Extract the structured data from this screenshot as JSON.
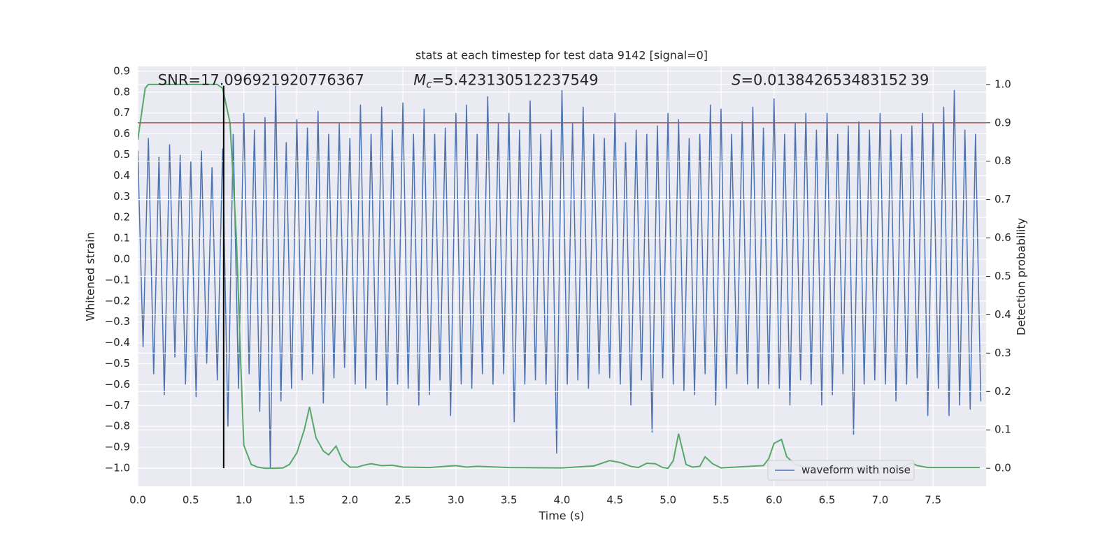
{
  "chart_data": {
    "type": "line",
    "title": "stats at each timestep for test data 9142 [signal=0]",
    "xlabel": "Time (s)",
    "ylabel": "Whitened strain",
    "y2label": "Detection probability",
    "xlim": [
      0,
      8
    ],
    "ylim": [
      -1.087,
      0.923
    ],
    "y2lim": [
      -0.047,
      1.047
    ],
    "xticks": [
      {
        "value": 0,
        "label": "0.0"
      },
      0.5,
      {
        "value": 1,
        "label": "1.0"
      },
      1.5,
      {
        "value": 2,
        "label": "2.0"
      },
      2.5,
      {
        "value": 3,
        "label": "3.0"
      },
      3.5,
      {
        "value": 4,
        "label": "4.0"
      },
      4.5,
      {
        "value": 5,
        "label": "5.0"
      },
      5.5,
      {
        "value": 6,
        "label": "6.0"
      },
      6.5,
      {
        "value": 7,
        "label": "7.0"
      },
      7.5
    ],
    "yticks": [
      0.9,
      0.8,
      0.7,
      0.6,
      0.5,
      0.4,
      0.3,
      0.2,
      0.1,
      {
        "value": 0,
        "label": "0.0"
      },
      {
        "value": -0.1,
        "label": "−0.1"
      },
      {
        "value": -0.2,
        "label": "−0.2"
      },
      {
        "value": -0.3,
        "label": "−0.3"
      },
      {
        "value": -0.4,
        "label": "−0.4"
      },
      {
        "value": -0.5,
        "label": "−0.5"
      },
      {
        "value": -0.6,
        "label": "−0.6"
      },
      {
        "value": -0.7,
        "label": "−0.7"
      },
      {
        "value": -0.8,
        "label": "−0.8"
      },
      {
        "value": -0.9,
        "label": "−0.9"
      },
      {
        "value": -1,
        "label": "−1.0"
      }
    ],
    "y2ticks": [
      {
        "value": 1,
        "label": "1.0"
      },
      0.9,
      0.8,
      0.7,
      0.6,
      0.5,
      0.4,
      0.3,
      0.2,
      0.1,
      {
        "value": 0,
        "label": "0.0"
      }
    ],
    "grid": true,
    "legend": "lower right",
    "annotations": [
      {
        "text": "SNR=17.096921920776367",
        "x": 0.19,
        "y": 0.855
      },
      {
        "symbol": "M",
        "sub": "c",
        "text": "=5.423130512237549",
        "x": 2.6,
        "y": 0.855
      },
      {
        "symbol": "S",
        "text": "=0.013842653483152 39",
        "x": 5.6,
        "y": 0.855
      }
    ],
    "series": [
      {
        "name": "waveform with noise",
        "color": "#4c72b0",
        "x": [
          0,
          0.05,
          0.1,
          0.15,
          0.2,
          0.25,
          0.3,
          0.35,
          0.4,
          0.45,
          0.5,
          0.55,
          0.6,
          0.65,
          0.7,
          0.75,
          0.8,
          0.85,
          0.9,
          0.95,
          1,
          1.05,
          1.1,
          1.15,
          1.2,
          1.25,
          1.3,
          1.35,
          1.4,
          1.45,
          1.5,
          1.55,
          1.6,
          1.65,
          1.7,
          1.75,
          1.8,
          1.85,
          1.9,
          1.95,
          2,
          2.05,
          2.1,
          2.15,
          2.2,
          2.25,
          2.3,
          2.35,
          2.4,
          2.45,
          2.5,
          2.55,
          2.6,
          2.65,
          2.7,
          2.75,
          2.8,
          2.85,
          2.9,
          2.95,
          3,
          3.05,
          3.1,
          3.15,
          3.2,
          3.25,
          3.3,
          3.35,
          3.4,
          3.45,
          3.5,
          3.55,
          3.6,
          3.65,
          3.7,
          3.75,
          3.8,
          3.85,
          3.9,
          3.95,
          4,
          4.05,
          4.1,
          4.15,
          4.2,
          4.25,
          4.3,
          4.35,
          4.4,
          4.45,
          4.5,
          4.55,
          4.6,
          4.65,
          4.7,
          4.75,
          4.8,
          4.85,
          4.9,
          4.95,
          5,
          5.05,
          5.1,
          5.15,
          5.2,
          5.25,
          5.3,
          5.35,
          5.4,
          5.45,
          5.5,
          5.55,
          5.6,
          5.65,
          5.7,
          5.75,
          5.8,
          5.85,
          5.9,
          5.95,
          6,
          6.05,
          6.1,
          6.15,
          6.2,
          6.25,
          6.3,
          6.35,
          6.4,
          6.45,
          6.5,
          6.55,
          6.6,
          6.65,
          6.7,
          6.75,
          6.8,
          6.85,
          6.9,
          6.95,
          7,
          7.05,
          7.1,
          7.15,
          7.2,
          7.25,
          7.3,
          7.35,
          7.4,
          7.45,
          7.5,
          7.55,
          7.6,
          7.65,
          7.7,
          7.75,
          7.8,
          7.85,
          7.9,
          7.95
        ],
        "values": [
          0.52,
          -0.42,
          0.58,
          -0.55,
          0.49,
          -0.65,
          0.55,
          -0.47,
          0.5,
          -0.6,
          0.47,
          -0.66,
          0.52,
          -0.5,
          0.44,
          -0.58,
          0.53,
          -0.8,
          0.6,
          -0.62,
          0.7,
          -0.55,
          0.62,
          -0.73,
          0.68,
          -1.0,
          0.83,
          -0.68,
          0.56,
          -0.62,
          0.67,
          -0.58,
          0.63,
          -0.55,
          0.71,
          -0.69,
          0.6,
          -0.57,
          0.65,
          -0.52,
          0.58,
          -0.6,
          0.74,
          -0.62,
          0.6,
          -0.58,
          0.73,
          -0.7,
          0.62,
          -0.6,
          0.75,
          -0.62,
          0.6,
          -0.7,
          0.72,
          -0.65,
          0.6,
          -0.58,
          0.63,
          -0.75,
          0.7,
          -0.6,
          0.74,
          -0.62,
          0.6,
          -0.55,
          0.78,
          -0.6,
          0.65,
          -0.55,
          0.7,
          -0.78,
          0.62,
          -0.6,
          0.76,
          -0.58,
          0.6,
          -0.6,
          0.62,
          -0.93,
          0.81,
          -0.6,
          0.65,
          -0.58,
          0.73,
          -0.62,
          0.6,
          -0.55,
          0.58,
          -0.57,
          0.7,
          -0.6,
          0.56,
          -0.7,
          0.62,
          -0.58,
          0.6,
          -0.83,
          0.64,
          -0.57,
          0.7,
          -0.6,
          0.67,
          -0.63,
          0.58,
          -0.65,
          0.6,
          -0.55,
          0.74,
          -0.7,
          0.72,
          -0.62,
          0.6,
          -0.55,
          0.66,
          -0.6,
          0.73,
          -0.62,
          0.63,
          -0.6,
          0.77,
          -0.62,
          0.6,
          -0.7,
          0.65,
          -0.58,
          0.7,
          -0.6,
          0.62,
          -0.7,
          0.7,
          -0.65,
          0.6,
          -0.55,
          0.64,
          -0.84,
          0.66,
          -0.6,
          0.62,
          -0.58,
          0.7,
          -0.6,
          0.62,
          -0.68,
          0.6,
          -0.6,
          0.64,
          -0.57,
          0.7,
          -0.75,
          0.65,
          -0.62,
          0.73,
          -0.75,
          0.81,
          -0.7,
          0.62,
          -0.72,
          0.6,
          -0.68
        ]
      },
      {
        "color": "#55a868",
        "axis": "y2",
        "x": [
          0,
          0.07,
          0.1,
          0.2,
          0.4,
          0.6,
          0.75,
          0.8,
          0.87,
          0.93,
          0.97,
          1,
          1.07,
          1.13,
          1.2,
          1.3,
          1.37,
          1.43,
          1.5,
          1.57,
          1.62,
          1.68,
          1.75,
          1.8,
          1.87,
          1.93,
          2,
          2.07,
          2.13,
          2.2,
          2.3,
          2.4,
          2.5,
          2.75,
          3,
          3.1,
          3.2,
          3.5,
          4,
          4.3,
          4.45,
          4.55,
          4.65,
          4.72,
          4.8,
          4.88,
          4.95,
          5,
          5.05,
          5.1,
          5.17,
          5.23,
          5.3,
          5.35,
          5.42,
          5.5,
          5.9,
          5.95,
          6,
          6.07,
          6.12,
          6.2,
          6.3,
          6.5,
          7,
          7.2,
          7.3,
          7.35,
          7.45,
          7.94
        ],
        "values": [
          0.856,
          0.99,
          1.0,
          1.0,
          1.0,
          1.0,
          1.0,
          0.99,
          0.9,
          0.6,
          0.28,
          0.06,
          0.01,
          0.003,
          0,
          0,
          0.001,
          0.01,
          0.04,
          0.1,
          0.16,
          0.08,
          0.045,
          0.035,
          0.058,
          0.02,
          0.003,
          0.003,
          0.008,
          0.012,
          0.007,
          0.008,
          0.003,
          0.002,
          0.007,
          0.003,
          0.005,
          0.002,
          0.001,
          0.006,
          0.02,
          0.015,
          0.005,
          0.002,
          0.013,
          0.012,
          0.002,
          0,
          0.02,
          0.09,
          0.01,
          0.003,
          0.005,
          0.03,
          0.012,
          0.001,
          0.007,
          0.025,
          0.065,
          0.075,
          0.03,
          0.01,
          0.003,
          0,
          0.001,
          0.002,
          0.014,
          0.007,
          0.002,
          0.002
        ]
      }
    ],
    "threshold": {
      "value": 0.9,
      "axis": "y2",
      "color": "#c44e52"
    },
    "marker_line": {
      "x": 0.81,
      "y_from": -1.0,
      "y_to": 0.83,
      "color": "#000000"
    }
  }
}
